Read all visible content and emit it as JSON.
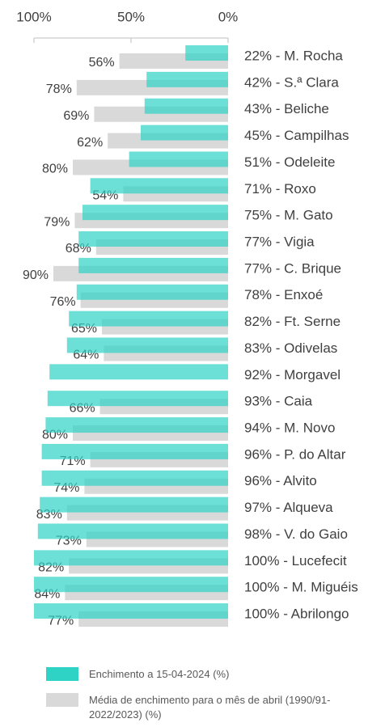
{
  "chart_data": {
    "type": "bar",
    "orientation": "horizontal",
    "x_reversed": true,
    "xlim": [
      0,
      100
    ],
    "xticks": [
      {
        "value": 100,
        "label": "100%"
      },
      {
        "value": 50,
        "label": "50%"
      },
      {
        "value": 0,
        "label": "0%"
      }
    ],
    "categories": [
      "22% - M. Rocha",
      "42% - S.ª Clara",
      "43% - Beliche",
      "45% - Campilhas",
      "51% - Odeleite",
      "71% - Roxo",
      "75% - M. Gato",
      "77% - Vigia",
      "77% - C. Brique",
      "78% - Enxoé",
      "82% - Ft. Serne",
      "83% - Odivelas",
      "92% - Morgavel",
      "93% - Caia",
      "94% - M. Novo",
      "96% - P. do Altar",
      "96% - Alvito",
      "97% - Alqueva",
      "98% - V. do Gaio",
      "100% - Lucefecit",
      "100% - M. Miguéis",
      "100% - Abrilongo"
    ],
    "series": [
      {
        "name": "Enchimento a 15-04-2024 (%)",
        "color": "#2ed3c6",
        "values": [
          22,
          42,
          43,
          45,
          51,
          71,
          75,
          77,
          77,
          78,
          82,
          83,
          92,
          93,
          94,
          96,
          96,
          97,
          98,
          100,
          100,
          100
        ]
      },
      {
        "name": "Média de enchimento para o mês de abril (1990/91-2022/2023) (%)",
        "color": "#d9d9d9",
        "values": [
          56,
          78,
          69,
          62,
          80,
          54,
          79,
          68,
          90,
          76,
          65,
          64,
          null,
          66,
          80,
          71,
          74,
          83,
          73,
          82,
          84,
          77
        ],
        "value_labels": [
          "56%",
          "78%",
          "69%",
          "62%",
          "80%",
          "54%",
          "79%",
          "68%",
          "90%",
          "76%",
          "65%",
          "64%",
          null,
          "66%",
          "80%",
          "71%",
          "74%",
          "83%",
          "73%",
          "82%",
          "84%",
          "77%"
        ]
      }
    ]
  }
}
